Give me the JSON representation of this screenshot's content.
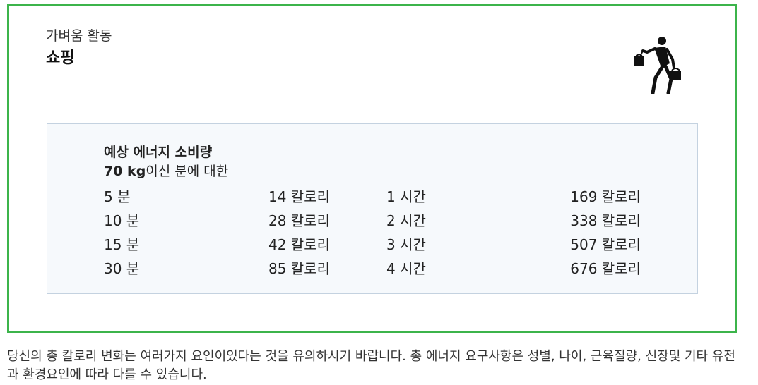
{
  "header": {
    "category": "가벼움 활동",
    "activity": "쇼핑",
    "icon": "shopping-person-icon"
  },
  "energy": {
    "title": "예상 에너지 소비량",
    "weight": "70 kg",
    "weight_suffix": "이신 분에 대한",
    "minutes": [
      {
        "duration": "5 분",
        "calories": "14 칼로리"
      },
      {
        "duration": "10 분",
        "calories": "28 칼로리"
      },
      {
        "duration": "15 분",
        "calories": "42 칼로리"
      },
      {
        "duration": "30 분",
        "calories": "85 칼로리"
      }
    ],
    "hours": [
      {
        "duration": "1 시간",
        "calories": "169 칼로리"
      },
      {
        "duration": "2 시간",
        "calories": "338 칼로리"
      },
      {
        "duration": "3 시간",
        "calories": "507 칼로리"
      },
      {
        "duration": "4 시간",
        "calories": "676 칼로리"
      }
    ]
  },
  "footnote": "당신의 총 칼로리 변화는 여러가지 요인이있다는 것을 유의하시기 바랍니다. 총 에너지 요구사항은 성별, 나이, 근육질량, 신장및 기타 유전과 환경요인에 따라 다를 수 있습니다.",
  "colors": {
    "border": "#3cb44b",
    "box_border": "#c4d2e0",
    "box_bg": "#f6f9fc"
  }
}
